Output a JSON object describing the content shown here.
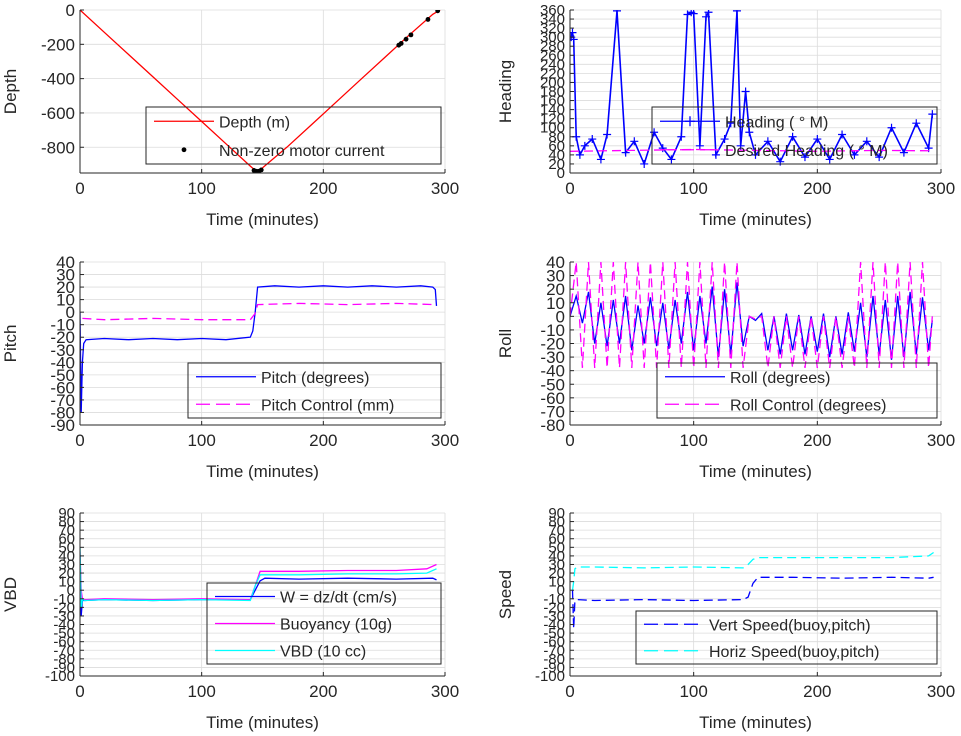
{
  "chart_data": [
    {
      "id": "depth",
      "type": "line",
      "xlabel": "Time (minutes)",
      "ylabel": "Depth",
      "xlim": [
        0,
        300
      ],
      "ylim": [
        -950,
        0
      ],
      "xticks": [
        0,
        100,
        200,
        300
      ],
      "yticks": [
        0,
        -200,
        -400,
        -600,
        -800
      ],
      "grid": true,
      "legend_placement": "bottom-right",
      "series": [
        {
          "name": "Depth (m)",
          "color": "#ff0000",
          "style": "solid",
          "x": [
            0,
            20,
            40,
            60,
            80,
            100,
            120,
            140,
            145,
            150,
            170,
            190,
            210,
            230,
            250,
            270,
            290,
            296
          ],
          "y": [
            0,
            -130,
            -260,
            -390,
            -520,
            -650,
            -780,
            -910,
            -940,
            -920,
            -800,
            -670,
            -540,
            -410,
            -280,
            -150,
            -25,
            0
          ]
        },
        {
          "name": "Non-zero motor current",
          "color": "#000000",
          "style": "dots",
          "x": [
            143,
            145,
            147,
            149,
            262,
            264,
            268,
            272,
            286,
            294
          ],
          "y": [
            -935,
            -940,
            -940,
            -932,
            -205,
            -195,
            -170,
            -145,
            -55,
            -5
          ]
        }
      ]
    },
    {
      "id": "heading",
      "type": "scatter",
      "xlabel": "Time (minutes)",
      "ylabel": "Heading",
      "xlim": [
        0,
        300
      ],
      "ylim": [
        0,
        360
      ],
      "xticks": [
        0,
        100,
        200,
        300
      ],
      "yticks": [
        0,
        20,
        40,
        60,
        80,
        100,
        120,
        140,
        160,
        180,
        200,
        220,
        240,
        260,
        280,
        300,
        320,
        340,
        360
      ],
      "grid": true,
      "legend_placement": "top-right",
      "series": [
        {
          "name": "Heading ( ° M)",
          "color": "#0000ff",
          "style": "plus",
          "x": [
            1,
            2,
            3,
            5,
            8,
            12,
            18,
            25,
            30,
            38,
            45,
            52,
            60,
            68,
            75,
            82,
            90,
            95,
            98,
            100,
            105,
            110,
            112,
            118,
            125,
            130,
            135,
            138,
            142,
            145,
            150,
            160,
            170,
            180,
            190,
            200,
            210,
            220,
            230,
            240,
            250,
            260,
            270,
            280,
            290,
            293
          ],
          "y": [
            300,
            310,
            295,
            80,
            40,
            60,
            75,
            30,
            85,
            358,
            45,
            70,
            20,
            90,
            55,
            30,
            80,
            350,
            355,
            352,
            60,
            345,
            355,
            40,
            75,
            110,
            358,
            60,
            180,
            90,
            40,
            70,
            25,
            80,
            35,
            75,
            30,
            85,
            40,
            70,
            35,
            100,
            45,
            110,
            55,
            130
          ]
        },
        {
          "name": "Desired Heading ( ° M)",
          "color": "#ff00ff",
          "style": "dash",
          "x": [
            0,
            50,
            100,
            150,
            200,
            250,
            294
          ],
          "y": [
            48,
            50,
            52,
            50,
            48,
            50,
            49
          ]
        }
      ]
    },
    {
      "id": "pitch",
      "type": "line",
      "xlabel": "Time (minutes)",
      "ylabel": "Pitch",
      "xlim": [
        0,
        300
      ],
      "ylim": [
        -90,
        40
      ],
      "xticks": [
        0,
        100,
        200,
        300
      ],
      "yticks": [
        40,
        30,
        20,
        10,
        0,
        -10,
        -20,
        -30,
        -40,
        -50,
        -60,
        -70,
        -80,
        -90
      ],
      "grid": true,
      "legend_placement": "bottom-right",
      "series": [
        {
          "name": "Pitch (degrees)",
          "color": "#0000ff",
          "style": "solid",
          "x": [
            0,
            1,
            2,
            3,
            5,
            20,
            40,
            60,
            80,
            100,
            120,
            140,
            142,
            144,
            146,
            160,
            180,
            200,
            220,
            240,
            260,
            280,
            290,
            292,
            293
          ],
          "y": [
            0,
            -80,
            -40,
            -25,
            -22,
            -21,
            -22,
            -21,
            -22,
            -21,
            -22,
            -20,
            -15,
            0,
            20,
            21,
            20,
            21,
            20,
            21,
            20,
            21,
            20,
            18,
            5
          ]
        },
        {
          "name": "Pitch Control (mm)",
          "color": "#ff00ff",
          "style": "dash",
          "x": [
            2,
            20,
            60,
            100,
            140,
            144,
            146,
            180,
            220,
            260,
            292
          ],
          "y": [
            -5,
            -6,
            -5,
            -6,
            -6,
            -1,
            6,
            7,
            6,
            7,
            6
          ]
        }
      ]
    },
    {
      "id": "roll",
      "type": "line",
      "xlabel": "Time (minutes)",
      "ylabel": "Roll",
      "xlim": [
        0,
        300
      ],
      "ylim": [
        -80,
        40
      ],
      "xticks": [
        0,
        100,
        200,
        300
      ],
      "yticks": [
        40,
        30,
        20,
        10,
        0,
        -10,
        -20,
        -30,
        -40,
        -50,
        -60,
        -70,
        -80
      ],
      "grid": true,
      "legend_placement": "bottom-right",
      "series": [
        {
          "name": "Roll (degrees)",
          "color": "#0000ff",
          "style": "solid",
          "x": [
            0,
            5,
            10,
            15,
            20,
            25,
            30,
            35,
            40,
            45,
            50,
            55,
            60,
            65,
            70,
            75,
            80,
            85,
            90,
            95,
            100,
            105,
            110,
            115,
            120,
            125,
            130,
            135,
            140,
            145,
            150,
            155,
            160,
            165,
            170,
            175,
            180,
            185,
            190,
            195,
            200,
            205,
            210,
            215,
            220,
            225,
            230,
            235,
            240,
            245,
            250,
            255,
            260,
            265,
            270,
            275,
            280,
            285,
            290,
            293
          ],
          "y": [
            0,
            15,
            -5,
            18,
            -20,
            10,
            -22,
            12,
            -20,
            15,
            -25,
            8,
            -20,
            14,
            -22,
            10,
            -24,
            12,
            -20,
            18,
            -25,
            15,
            -20,
            22,
            -30,
            20,
            -28,
            25,
            -22,
            0,
            -3,
            2,
            -25,
            0,
            -28,
            2,
            -25,
            1,
            -28,
            0,
            -26,
            2,
            -30,
            0,
            -28,
            3,
            -26,
            10,
            -30,
            15,
            -28,
            12,
            -32,
            15,
            -30,
            18,
            -28,
            14,
            -25,
            -3
          ]
        },
        {
          "name": "Roll Control (degrees)",
          "color": "#ff00ff",
          "style": "dash",
          "x": [
            0,
            5,
            10,
            15,
            20,
            25,
            30,
            35,
            40,
            45,
            50,
            55,
            60,
            65,
            70,
            75,
            80,
            85,
            90,
            95,
            100,
            105,
            110,
            115,
            120,
            125,
            130,
            135,
            140,
            145,
            150,
            155,
            160,
            165,
            170,
            175,
            180,
            185,
            190,
            195,
            200,
            205,
            210,
            215,
            220,
            225,
            230,
            235,
            240,
            245,
            250,
            255,
            260,
            265,
            270,
            275,
            280,
            285,
            290,
            293
          ],
          "y": [
            0,
            40,
            -38,
            40,
            -38,
            40,
            -38,
            40,
            -38,
            40,
            -38,
            40,
            -38,
            40,
            -38,
            40,
            -38,
            40,
            -38,
            40,
            -38,
            40,
            -38,
            40,
            -38,
            40,
            -38,
            40,
            -38,
            0,
            -2,
            0,
            -38,
            0,
            -38,
            0,
            -38,
            0,
            -38,
            0,
            -38,
            0,
            -38,
            0,
            -38,
            0,
            -38,
            40,
            -38,
            40,
            -38,
            40,
            -38,
            40,
            -38,
            40,
            -38,
            40,
            -38,
            0
          ]
        }
      ]
    },
    {
      "id": "vbd",
      "type": "line",
      "xlabel": "Time (minutes)",
      "ylabel": "VBD",
      "xlim": [
        0,
        300
      ],
      "ylim": [
        -100,
        90
      ],
      "xticks": [
        0,
        100,
        200,
        300
      ],
      "yticks": [
        90,
        80,
        70,
        60,
        50,
        40,
        30,
        20,
        10,
        0,
        -10,
        -20,
        -30,
        -40,
        -50,
        -60,
        -70,
        -80,
        -90,
        -100
      ],
      "grid": true,
      "legend_placement": "bottom-right",
      "series": [
        {
          "name": "W = dz/dt (cm/s)",
          "color": "#0000ff",
          "style": "solid",
          "x": [
            0,
            1,
            2,
            4,
            20,
            60,
            100,
            140,
            144,
            148,
            152,
            180,
            220,
            260,
            290,
            293
          ],
          "y": [
            40,
            -30,
            -12,
            -12,
            -11,
            -12,
            -11,
            -11,
            0,
            11,
            14,
            13,
            14,
            13,
            14,
            12
          ]
        },
        {
          "name": "Buoyancy (10g)",
          "color": "#ff00ff",
          "style": "solid",
          "x": [
            0,
            1,
            2,
            4,
            20,
            60,
            100,
            140,
            144,
            148,
            180,
            220,
            260,
            285,
            293
          ],
          "y": [
            45,
            0,
            -10,
            -11,
            -10,
            -11,
            -10,
            -11,
            5,
            22,
            22,
            23,
            23,
            25,
            30
          ]
        },
        {
          "name": "VBD (10 cc)",
          "color": "#00ffff",
          "style": "solid",
          "x": [
            0,
            1,
            2,
            4,
            20,
            60,
            100,
            140,
            144,
            148,
            180,
            220,
            260,
            285,
            293
          ],
          "y": [
            50,
            -20,
            -11,
            -12,
            -11,
            -12,
            -11,
            -12,
            5,
            18,
            18,
            19,
            19,
            20,
            25
          ]
        }
      ]
    },
    {
      "id": "speed",
      "type": "line",
      "xlabel": "Time (minutes)",
      "ylabel": "Speed",
      "xlim": [
        0,
        300
      ],
      "ylim": [
        -100,
        90
      ],
      "xticks": [
        0,
        100,
        200,
        300
      ],
      "yticks": [
        90,
        80,
        70,
        60,
        50,
        40,
        30,
        20,
        10,
        0,
        -10,
        -20,
        -30,
        -40,
        -50,
        -60,
        -70,
        -80,
        -90,
        -100
      ],
      "grid": true,
      "legend_placement": "bottom-right",
      "series": [
        {
          "name": "Vert Speed(buoy,pitch)",
          "color": "#0000ff",
          "style": "dash",
          "x": [
            2,
            3,
            4,
            6,
            20,
            60,
            100,
            140,
            144,
            148,
            152,
            180,
            220,
            260,
            290,
            294
          ],
          "y": [
            0,
            -45,
            -12,
            -11,
            -12,
            -11,
            -12,
            -11,
            -8,
            8,
            15,
            15,
            14,
            15,
            14,
            15
          ]
        },
        {
          "name": "Horiz Speed(buoy,pitch)",
          "color": "#00ffff",
          "style": "dash",
          "x": [
            2,
            3,
            4,
            6,
            20,
            60,
            100,
            140,
            144,
            148,
            152,
            180,
            220,
            260,
            290,
            294
          ],
          "y": [
            0,
            10,
            25,
            27,
            27,
            26,
            27,
            26,
            30,
            36,
            38,
            38,
            38,
            38,
            40,
            44
          ]
        }
      ]
    }
  ]
}
